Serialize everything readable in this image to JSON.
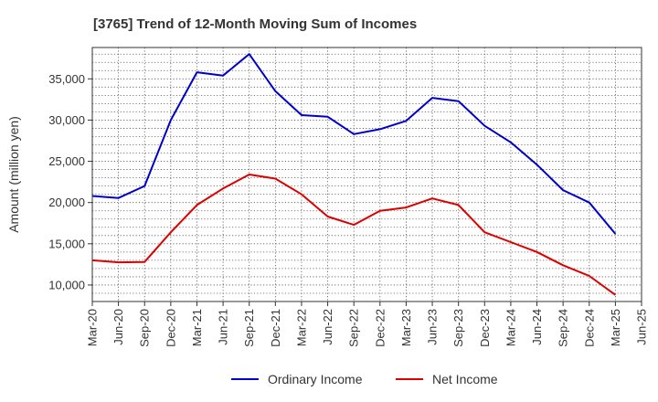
{
  "chart_data": {
    "type": "line",
    "title": "[3765]  Trend of 12-Month Moving Sum of Incomes",
    "xlabel": "",
    "ylabel": "Amount (million yen)",
    "ylim": [
      8000,
      38800
    ],
    "yticks": [
      10000,
      15000,
      20000,
      25000,
      30000,
      35000
    ],
    "ytick_labels": [
      "10,000",
      "15,000",
      "20,000",
      "25,000",
      "30,000",
      "35,000"
    ],
    "grid": true,
    "legend_position": "bottom-center",
    "categories": [
      "Mar-20",
      "Jun-20",
      "Sep-20",
      "Dec-20",
      "Mar-21",
      "Jun-21",
      "Sep-21",
      "Dec-21",
      "Mar-22",
      "Jun-22",
      "Sep-22",
      "Dec-22",
      "Mar-23",
      "Jun-23",
      "Sep-23",
      "Dec-23",
      "Mar-24",
      "Jun-24",
      "Sep-24",
      "Dec-24",
      "Mar-25",
      "Jun-25"
    ],
    "series": [
      {
        "name": "Ordinary Income",
        "color": "#0000cc",
        "values": [
          20800,
          20550,
          22000,
          30000,
          35800,
          35400,
          38000,
          33500,
          30600,
          30400,
          28300,
          28900,
          29900,
          32700,
          32300,
          29300,
          27300,
          24600,
          21500,
          20000,
          16200,
          null
        ]
      },
      {
        "name": "Net Income",
        "color": "#dd0000",
        "values": [
          13000,
          12750,
          12800,
          16400,
          19700,
          21700,
          23400,
          22900,
          21000,
          18300,
          17300,
          19000,
          19400,
          20500,
          19700,
          16400,
          15200,
          14000,
          12400,
          11100,
          8800,
          null
        ]
      }
    ]
  }
}
